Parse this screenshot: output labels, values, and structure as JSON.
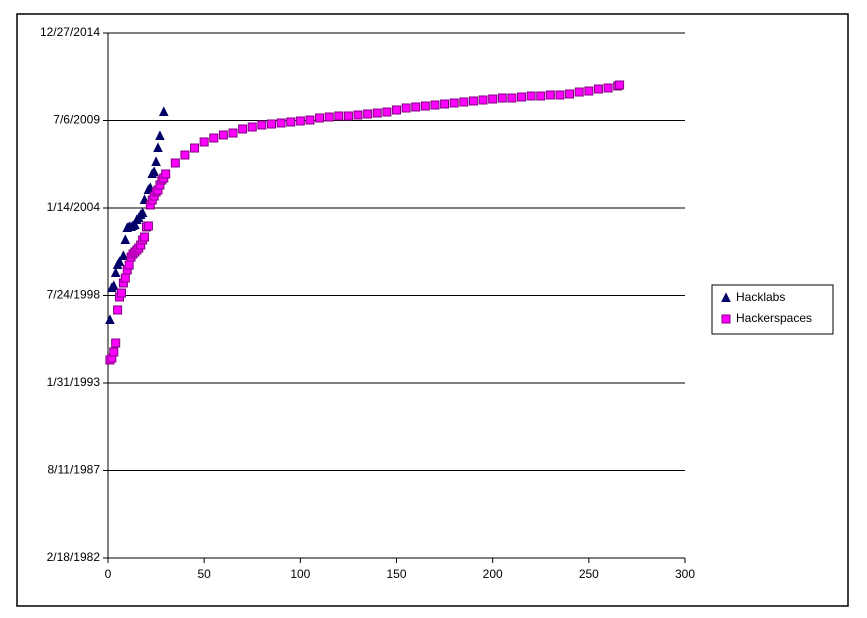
{
  "chart_data": {
    "type": "scatter",
    "xlim": [
      0,
      300
    ],
    "xticks": [
      0,
      50,
      100,
      150,
      200,
      250,
      300
    ],
    "ylim": [
      30000,
      42000
    ],
    "yticks": [
      {
        "value": 30000,
        "label": "2/18/1982"
      },
      {
        "value": 32000,
        "label": "8/11/1987"
      },
      {
        "value": 34000,
        "label": "1/31/1993"
      },
      {
        "value": 36000,
        "label": "7/24/1998"
      },
      {
        "value": 38000,
        "label": "1/14/2004"
      },
      {
        "value": 40000,
        "label": "7/6/2009"
      },
      {
        "value": 42000,
        "label": "12/27/2014"
      }
    ],
    "grid": true,
    "legend": "right",
    "series": [
      {
        "name": "Hacklabs",
        "color": "#000066",
        "marker": "triangle",
        "x": [
          1,
          2,
          3,
          4,
          5,
          6,
          8,
          9,
          10,
          11,
          12,
          13,
          14,
          15,
          16,
          17,
          18,
          19,
          21,
          22,
          23,
          24,
          25,
          26,
          27,
          29
        ],
        "values": [
          35440,
          36171,
          36217,
          36514,
          36697,
          36766,
          36903,
          37269,
          37543,
          37566,
          37566,
          37589,
          37611,
          37726,
          37771,
          37840,
          37886,
          38183,
          38411,
          38457,
          38777,
          38823,
          39051,
          39371,
          39646,
          40194
        ]
      },
      {
        "name": "Hackerspaces",
        "color": "#ff00ff",
        "marker": "square",
        "x": [
          1,
          2,
          3,
          4,
          5,
          6,
          7,
          8,
          9,
          10,
          11,
          12,
          13,
          14,
          15,
          16,
          17,
          18,
          19,
          20,
          21,
          22,
          23,
          24,
          25,
          26,
          27,
          28,
          29,
          30,
          35,
          40,
          45,
          50,
          55,
          60,
          65,
          70,
          75,
          80,
          85,
          90,
          95,
          100,
          105,
          110,
          115,
          120,
          125,
          130,
          135,
          140,
          145,
          150,
          155,
          160,
          165,
          170,
          175,
          180,
          185,
          190,
          195,
          200,
          205,
          210,
          215,
          220,
          225,
          230,
          235,
          240,
          245,
          250,
          255,
          260,
          265,
          266
        ],
        "values": [
          34526,
          34571,
          34709,
          34914,
          35669,
          35966,
          36057,
          36286,
          36400,
          36583,
          36697,
          36880,
          36949,
          36994,
          37040,
          37086,
          37154,
          37269,
          37337,
          37566,
          37589,
          38069,
          38183,
          38274,
          38366,
          38411,
          38526,
          38640,
          38686,
          38777,
          39029,
          39211,
          39371,
          39509,
          39600,
          39669,
          39714,
          39806,
          39851,
          39897,
          39920,
          39943,
          39966,
          39989,
          40011,
          40057,
          40080,
          40103,
          40103,
          40126,
          40149,
          40171,
          40194,
          40240,
          40286,
          40309,
          40331,
          40354,
          40377,
          40400,
          40423,
          40446,
          40469,
          40491,
          40514,
          40514,
          40537,
          40560,
          40560,
          40583,
          40583,
          40606,
          40651,
          40674,
          40720,
          40743,
          40789,
          40811
        ]
      }
    ]
  }
}
